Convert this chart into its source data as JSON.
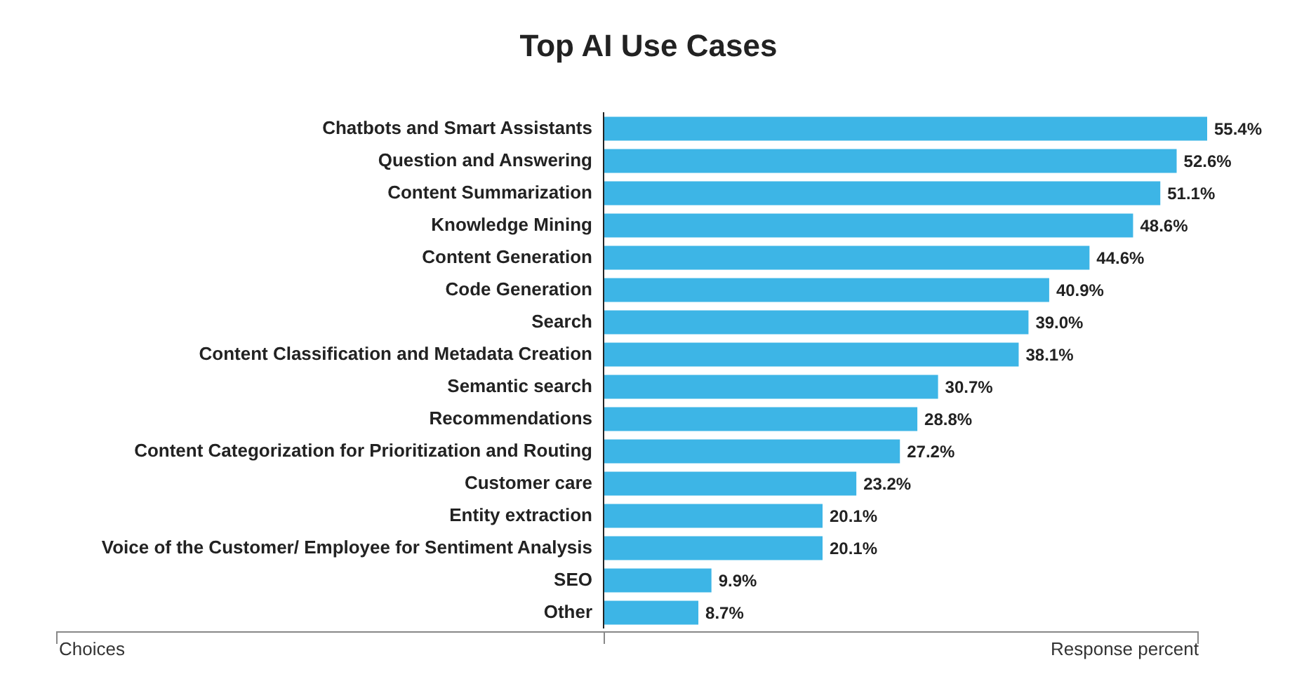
{
  "chart_data": {
    "type": "bar",
    "orientation": "horizontal",
    "title": "Top AI Use Cases",
    "xlabel": "Response percent",
    "ylabel": "Choices",
    "color": "#3db5e6",
    "categories": [
      "Chatbots and Smart Assistants",
      "Question and Answering",
      "Content Summarization",
      "Knowledge Mining",
      "Content Generation",
      "Code Generation",
      "Search",
      "Content Classification and Metadata Creation",
      "Semantic search",
      "Recommendations",
      "Content Categorization for Prioritization and Routing",
      "Customer care",
      "Entity extraction",
      "Voice of the Customer/ Employee for Sentiment Analysis",
      "SEO",
      "Other"
    ],
    "values": [
      55.4,
      52.6,
      51.1,
      48.6,
      44.6,
      40.9,
      39.0,
      38.1,
      30.7,
      28.8,
      27.2,
      23.2,
      20.1,
      20.1,
      9.9,
      8.7
    ],
    "value_labels": [
      "55.4%",
      "52.6%",
      "51.1%",
      "48.6%",
      "44.6%",
      "40.9%",
      "39.0%",
      "38.1%",
      "30.7%",
      "28.8%",
      "27.2%",
      "23.2%",
      "20.1%",
      "20.1%",
      "9.9%",
      "8.7%"
    ]
  }
}
